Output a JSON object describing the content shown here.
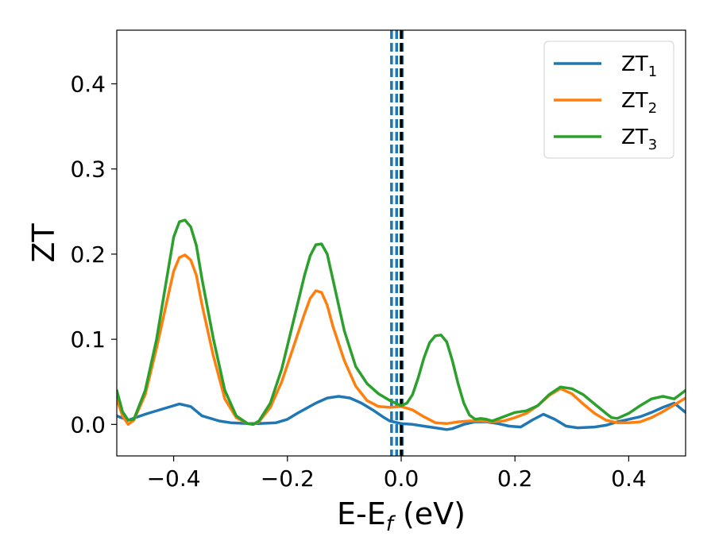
{
  "chart_data": {
    "type": "line",
    "title": "",
    "xlabel": {
      "main": "E-E",
      "sub": "f",
      "suffix": " (eV)"
    },
    "ylabel": "ZT",
    "xlim": [
      -0.5,
      0.5
    ],
    "ylim": [
      -0.037,
      0.463
    ],
    "xticks": [
      -0.4,
      -0.2,
      0.0,
      0.2,
      0.4
    ],
    "xtick_labels": [
      "−0.4",
      "−0.2",
      "0.0",
      "0.2",
      "0.4"
    ],
    "yticks": [
      0.0,
      0.1,
      0.2,
      0.3,
      0.4
    ],
    "ytick_labels": [
      "0.0",
      "0.1",
      "0.2",
      "0.3",
      "0.4"
    ],
    "grid": false,
    "legend_position": "top-right",
    "vertical_lines": [
      {
        "x": -0.017,
        "style": "dashed",
        "color": "#1f77b4"
      },
      {
        "x": -0.008,
        "style": "dashed",
        "color": "#1f77b4"
      },
      {
        "x": 0.002,
        "style": "dashed",
        "color": "#1f77b4"
      },
      {
        "x": 0.0,
        "style": "dashed",
        "color": "#000000"
      }
    ],
    "series": [
      {
        "name": "ZT",
        "sub": "1",
        "color": "#1f77b4",
        "x": [
          -0.5,
          -0.48,
          -0.45,
          -0.42,
          -0.39,
          -0.37,
          -0.35,
          -0.32,
          -0.3,
          -0.27,
          -0.25,
          -0.22,
          -0.2,
          -0.18,
          -0.15,
          -0.13,
          -0.11,
          -0.09,
          -0.07,
          -0.05,
          -0.03,
          -0.02,
          0.0,
          0.02,
          0.04,
          0.06,
          0.08,
          0.09,
          0.11,
          0.13,
          0.15,
          0.17,
          0.19,
          0.21,
          0.23,
          0.25,
          0.27,
          0.29,
          0.31,
          0.34,
          0.36,
          0.38,
          0.4,
          0.42,
          0.44,
          0.46,
          0.48,
          0.5
        ],
        "y": [
          0.01,
          0.005,
          0.012,
          0.018,
          0.024,
          0.021,
          0.01,
          0.004,
          0.002,
          0.001,
          0.001,
          0.002,
          0.006,
          0.014,
          0.025,
          0.031,
          0.033,
          0.031,
          0.025,
          0.017,
          0.008,
          0.004,
          0.001,
          0.0,
          -0.002,
          -0.004,
          -0.006,
          -0.005,
          0.0,
          0.003,
          0.003,
          0.001,
          -0.002,
          -0.003,
          0.005,
          0.012,
          0.006,
          -0.002,
          -0.004,
          -0.003,
          -0.001,
          0.003,
          0.006,
          0.009,
          0.014,
          0.02,
          0.025,
          0.014
        ]
      },
      {
        "name": "ZT",
        "sub": "2",
        "color": "#ff7f0e",
        "x": [
          -0.5,
          -0.49,
          -0.48,
          -0.47,
          -0.45,
          -0.43,
          -0.41,
          -0.4,
          -0.39,
          -0.38,
          -0.37,
          -0.36,
          -0.35,
          -0.33,
          -0.31,
          -0.29,
          -0.27,
          -0.26,
          -0.25,
          -0.23,
          -0.21,
          -0.19,
          -0.17,
          -0.16,
          -0.15,
          -0.14,
          -0.13,
          -0.12,
          -0.1,
          -0.08,
          -0.06,
          -0.04,
          -0.02,
          0.0,
          0.02,
          0.04,
          0.06,
          0.08,
          0.1,
          0.12,
          0.14,
          0.16,
          0.18,
          0.2,
          0.22,
          0.24,
          0.26,
          0.28,
          0.3,
          0.32,
          0.34,
          0.36,
          0.38,
          0.4,
          0.42,
          0.44,
          0.46,
          0.48,
          0.5
        ],
        "y": [
          0.03,
          0.01,
          0.0,
          0.005,
          0.035,
          0.09,
          0.15,
          0.18,
          0.196,
          0.199,
          0.193,
          0.175,
          0.14,
          0.08,
          0.03,
          0.008,
          0.001,
          0.0,
          0.003,
          0.02,
          0.05,
          0.09,
          0.13,
          0.148,
          0.157,
          0.155,
          0.14,
          0.115,
          0.075,
          0.045,
          0.028,
          0.021,
          0.02,
          0.021,
          0.017,
          0.009,
          0.002,
          0.001,
          0.003,
          0.004,
          0.004,
          0.003,
          0.004,
          0.008,
          0.013,
          0.022,
          0.034,
          0.042,
          0.036,
          0.024,
          0.013,
          0.005,
          0.002,
          0.002,
          0.003,
          0.008,
          0.015,
          0.023,
          0.031
        ]
      },
      {
        "name": "ZT",
        "sub": "3",
        "color": "#2ca02c",
        "x": [
          -0.5,
          -0.49,
          -0.48,
          -0.47,
          -0.45,
          -0.43,
          -0.41,
          -0.4,
          -0.39,
          -0.38,
          -0.37,
          -0.36,
          -0.35,
          -0.33,
          -0.31,
          -0.29,
          -0.27,
          -0.26,
          -0.25,
          -0.23,
          -0.21,
          -0.19,
          -0.17,
          -0.16,
          -0.15,
          -0.14,
          -0.13,
          -0.12,
          -0.1,
          -0.08,
          -0.06,
          -0.04,
          -0.02,
          0.0,
          0.01,
          0.02,
          0.03,
          0.04,
          0.05,
          0.06,
          0.07,
          0.08,
          0.09,
          0.1,
          0.11,
          0.12,
          0.13,
          0.14,
          0.15,
          0.16,
          0.18,
          0.2,
          0.22,
          0.24,
          0.26,
          0.28,
          0.3,
          0.32,
          0.34,
          0.36,
          0.37,
          0.38,
          0.4,
          0.42,
          0.44,
          0.46,
          0.48,
          0.5
        ],
        "y": [
          0.04,
          0.015,
          0.005,
          0.006,
          0.04,
          0.1,
          0.18,
          0.22,
          0.238,
          0.24,
          0.232,
          0.21,
          0.17,
          0.1,
          0.04,
          0.01,
          0.001,
          0.0,
          0.004,
          0.025,
          0.065,
          0.12,
          0.175,
          0.198,
          0.211,
          0.212,
          0.2,
          0.17,
          0.11,
          0.068,
          0.048,
          0.036,
          0.028,
          0.022,
          0.025,
          0.035,
          0.055,
          0.078,
          0.096,
          0.104,
          0.105,
          0.097,
          0.075,
          0.048,
          0.025,
          0.011,
          0.006,
          0.007,
          0.006,
          0.004,
          0.009,
          0.014,
          0.016,
          0.022,
          0.035,
          0.044,
          0.042,
          0.035,
          0.024,
          0.013,
          0.008,
          0.007,
          0.013,
          0.022,
          0.03,
          0.033,
          0.03,
          0.04
        ]
      }
    ]
  }
}
